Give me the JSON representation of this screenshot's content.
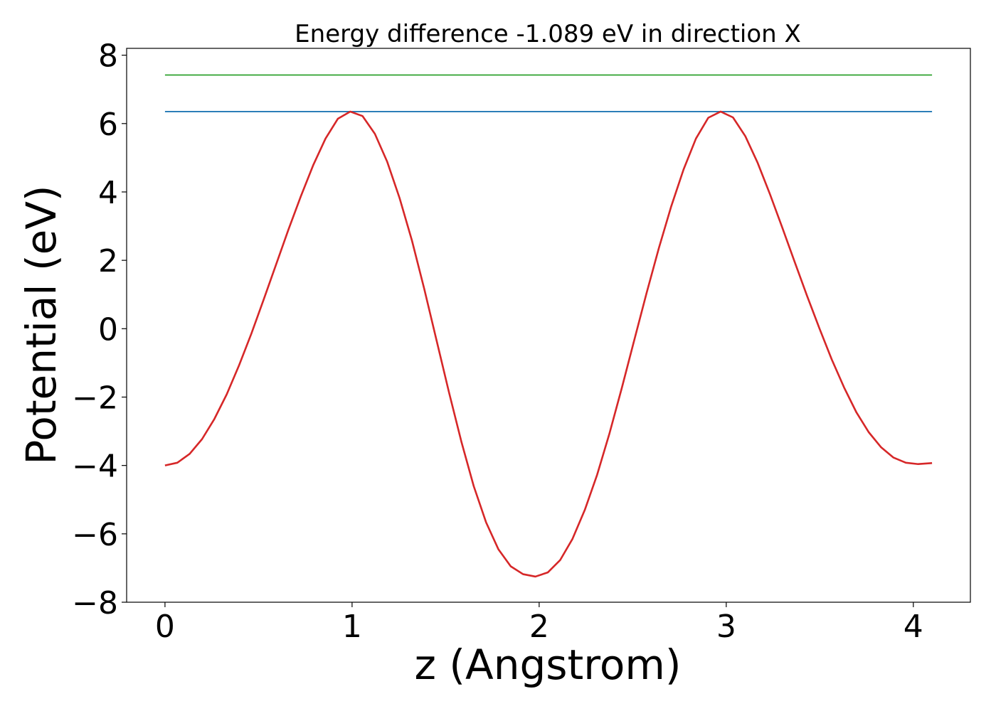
{
  "chart_data": {
    "type": "line",
    "title": "Energy difference -1.089 eV in direction X",
    "xlabel": "z (Angstrom)",
    "ylabel": "Potential (eV)",
    "xlim": [
      -0.205,
      4.305
    ],
    "ylim": [
      -8,
      8.2
    ],
    "xticks": [
      0,
      1,
      2,
      3,
      4
    ],
    "xtick_labels": [
      "0",
      "1",
      "2",
      "3",
      "4"
    ],
    "yticks": [
      -8,
      -6,
      -4,
      -2,
      0,
      2,
      4,
      6,
      8
    ],
    "ytick_labels": [
      "−8",
      "−6",
      "−4",
      "−2",
      "0",
      "2",
      "4",
      "6",
      "8"
    ],
    "grid": false,
    "series": [
      {
        "color": "#2ca02c",
        "x": [
          0,
          4.1
        ],
        "y": [
          7.42,
          7.42
        ]
      },
      {
        "color": "#1f77b4",
        "x": [
          0,
          4.1
        ],
        "y": [
          6.35,
          6.35
        ]
      },
      {
        "color": "#d62728",
        "x": [
          0,
          0.066,
          0.132,
          0.198,
          0.264,
          0.33,
          0.396,
          0.462,
          0.528,
          0.594,
          0.66,
          0.726,
          0.792,
          0.858,
          0.924,
          0.99,
          1.056,
          1.122,
          1.188,
          1.254,
          1.32,
          1.386,
          1.452,
          1.518,
          1.584,
          1.65,
          1.716,
          1.782,
          1.848,
          1.914,
          1.98,
          2.046,
          2.112,
          2.178,
          2.244,
          2.31,
          2.376,
          2.442,
          2.508,
          2.574,
          2.64,
          2.706,
          2.772,
          2.838,
          2.904,
          2.97,
          3.036,
          3.102,
          3.168,
          3.234,
          3.3,
          3.366,
          3.432,
          3.498,
          3.564,
          3.63,
          3.696,
          3.762,
          3.828,
          3.894,
          3.96,
          4.026,
          4.1
        ],
        "y": [
          -4.0,
          -3.92,
          -3.66,
          -3.23,
          -2.64,
          -1.92,
          -1.07,
          -0.14,
          0.86,
          1.88,
          2.9,
          3.87,
          4.78,
          5.56,
          6.14,
          6.35,
          6.22,
          5.7,
          4.88,
          3.82,
          2.58,
          1.16,
          -0.35,
          -1.86,
          -3.3,
          -4.6,
          -5.66,
          -6.45,
          -6.95,
          -7.18,
          -7.25,
          -7.13,
          -6.77,
          -6.15,
          -5.3,
          -4.27,
          -3.06,
          -1.73,
          -0.34,
          1.04,
          2.36,
          3.58,
          4.66,
          5.56,
          6.17,
          6.35,
          6.18,
          5.63,
          4.85,
          3.93,
          2.95,
          1.95,
          0.96,
          0.01,
          -0.9,
          -1.72,
          -2.45,
          -3.03,
          -3.47,
          -3.77,
          -3.92,
          -3.96,
          -3.93
        ]
      }
    ]
  }
}
